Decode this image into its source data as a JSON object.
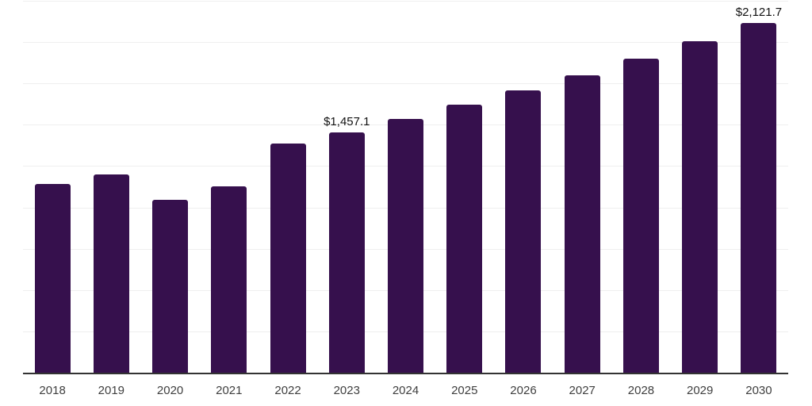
{
  "chart_data": {
    "type": "bar",
    "title": "",
    "xlabel": "",
    "ylabel": "",
    "categories": [
      "2018",
      "2019",
      "2020",
      "2021",
      "2022",
      "2023",
      "2024",
      "2025",
      "2026",
      "2027",
      "2028",
      "2029",
      "2030"
    ],
    "values": [
      1148,
      1205,
      1051,
      1132,
      1390,
      1457.1,
      1541,
      1625,
      1712,
      1806,
      1904,
      2010,
      2121.7
    ],
    "value_labels": {
      "2023": "$1,457.1",
      "2030": "$2,121.7"
    },
    "ylim": [
      0,
      2250
    ],
    "gridline_step": 250,
    "grid": "horizontal-only",
    "legend": "none",
    "y_tick_labels_visible": false,
    "bar_color": "#36104d",
    "gridline_color": "#efefef",
    "axis_line_color": "#333333",
    "x_label_color": "#3f3f3f",
    "value_label_color": "#111111",
    "background_color": "#ffffff"
  }
}
